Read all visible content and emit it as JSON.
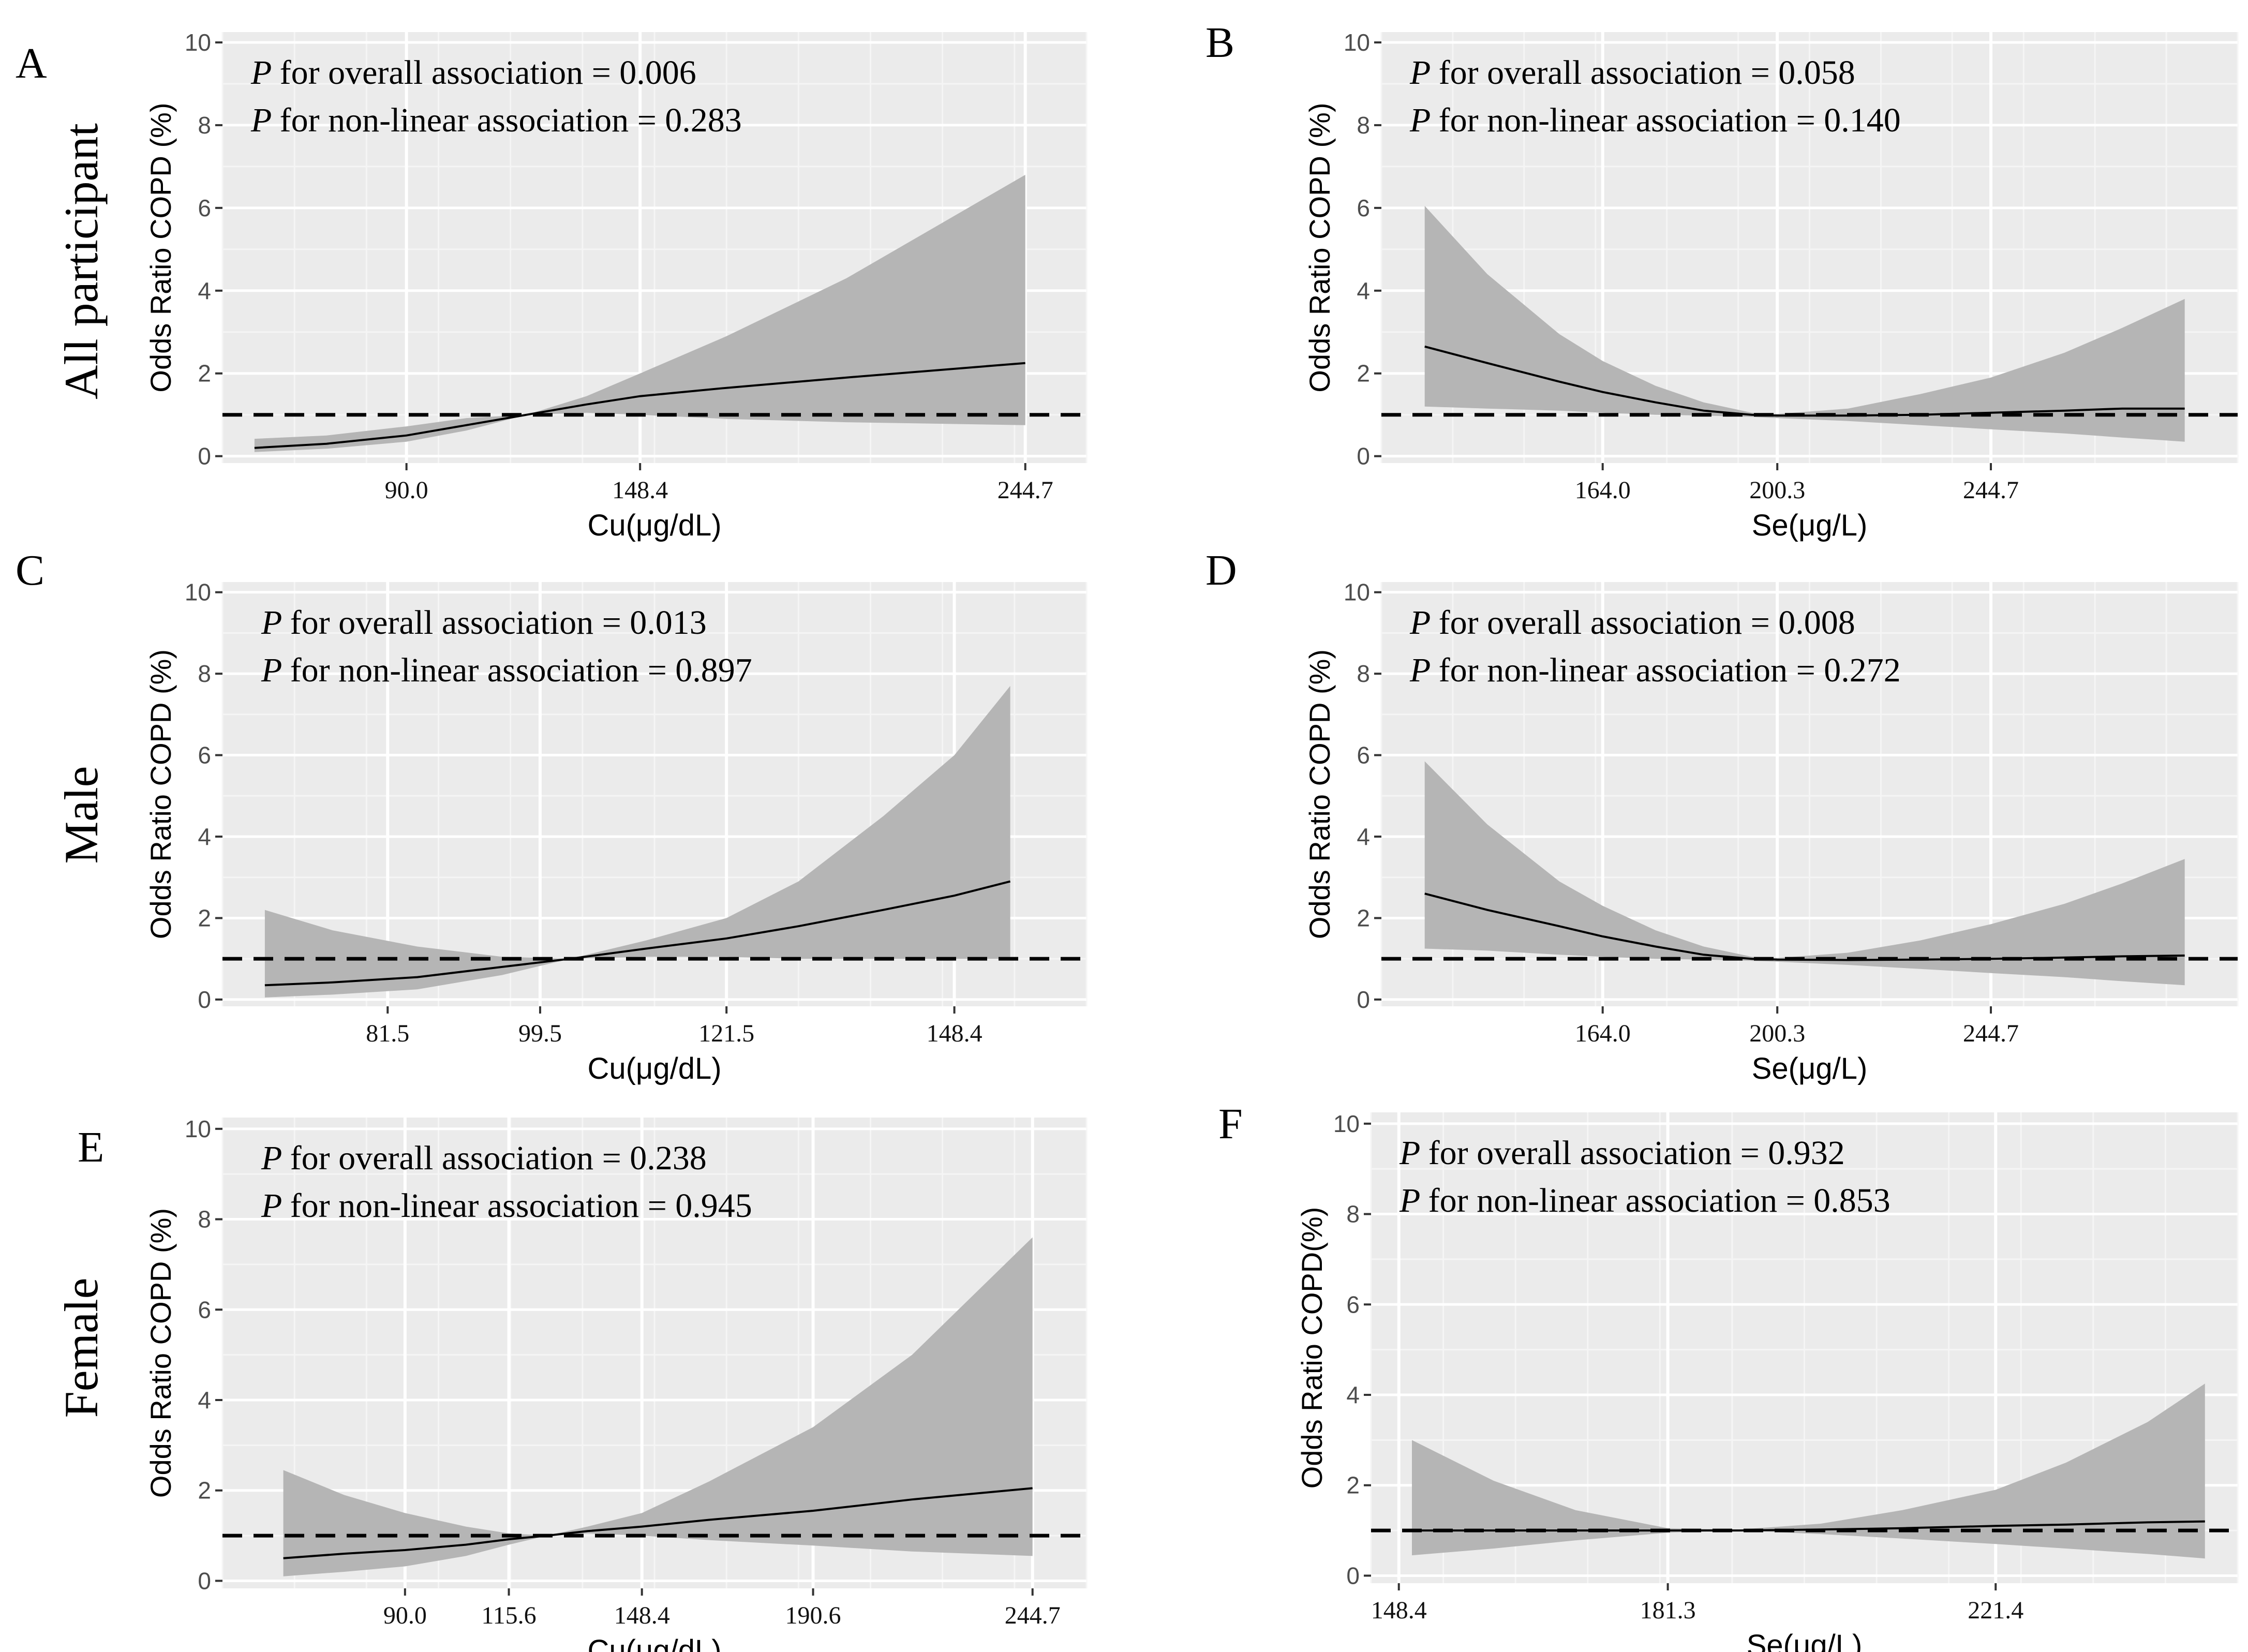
{
  "figure": {
    "row_labels": [
      "All participant",
      "Male",
      "Female"
    ]
  },
  "chart_data": [
    {
      "panel": "A",
      "type": "line",
      "xlabel": "Cu(μg/dL)",
      "ylabel": "Odds Ratio COPD  (%)",
      "ylim": [
        0,
        10
      ],
      "yticks": [
        0,
        2,
        4,
        6,
        8,
        10
      ],
      "xrange": [
        44,
        260
      ],
      "xticks": [
        90.0,
        148.4,
        244.7
      ],
      "xtick_labels": [
        "90.0",
        "148.4",
        "244.7"
      ],
      "grid": true,
      "reference_line": 1,
      "annotations": [
        "for overall association = 0.006",
        "for non-linear association = 0.283"
      ],
      "series": [
        {
          "x": [
            52,
            70,
            90,
            105,
            120,
            135,
            148.4,
            170,
            200,
            244.7
          ],
          "y": [
            0.2,
            0.3,
            0.5,
            0.75,
            1.0,
            1.25,
            1.45,
            1.65,
            1.9,
            2.25
          ],
          "lower": [
            0.1,
            0.18,
            0.35,
            0.62,
            1.0,
            1.05,
            1.0,
            0.9,
            0.82,
            0.75
          ],
          "upper": [
            0.42,
            0.5,
            0.72,
            0.92,
            1.0,
            1.45,
            2.0,
            2.9,
            4.3,
            6.8
          ]
        }
      ]
    },
    {
      "panel": "B",
      "type": "line",
      "xlabel": "Se(μg/L)",
      "ylabel": "Odds Ratio COPD  (%)",
      "ylim": [
        0,
        10
      ],
      "yticks": [
        0,
        2,
        4,
        6,
        8,
        10
      ],
      "xrange": [
        118,
        296
      ],
      "xticks": [
        164.0,
        200.3,
        244.7
      ],
      "xtick_labels": [
        "164.0",
        "200.3",
        "244.7"
      ],
      "grid": true,
      "reference_line": 1,
      "annotations": [
        "for overall association = 0.058",
        "for non-linear association = 0.140"
      ],
      "series": [
        {
          "x": [
            127,
            140,
            155,
            164,
            175,
            185,
            195,
            200.3,
            215,
            230,
            244.7,
            260,
            272,
            285
          ],
          "y": [
            2.65,
            2.25,
            1.8,
            1.55,
            1.3,
            1.1,
            1.0,
            0.98,
            0.98,
            1.0,
            1.05,
            1.1,
            1.15,
            1.15
          ],
          "lower": [
            1.2,
            1.15,
            1.1,
            1.05,
            1.0,
            0.98,
            0.95,
            0.92,
            0.85,
            0.75,
            0.65,
            0.55,
            0.45,
            0.35
          ],
          "upper": [
            6.05,
            4.4,
            2.95,
            2.3,
            1.7,
            1.3,
            1.05,
            1.02,
            1.15,
            1.5,
            1.9,
            2.5,
            3.1,
            3.8
          ]
        }
      ]
    },
    {
      "panel": "C",
      "type": "line",
      "xlabel": "Cu(μg/dL)",
      "ylabel": "Odds Ratio COPD  (%)",
      "ylim": [
        0,
        10
      ],
      "yticks": [
        0,
        2,
        4,
        6,
        8,
        10
      ],
      "xrange": [
        62,
        164
      ],
      "xticks": [
        81.5,
        99.5,
        121.5,
        148.4
      ],
      "xtick_labels": [
        "81.5",
        "99.5",
        "121.5",
        "148.4"
      ],
      "grid": true,
      "reference_line": 1,
      "annotations": [
        "for overall association = 0.013",
        "for non-linear association = 0.897"
      ],
      "series": [
        {
          "x": [
            67,
            75,
            85,
            95,
            103,
            112,
            121.5,
            130,
            140,
            148.4,
            155
          ],
          "y": [
            0.35,
            0.42,
            0.55,
            0.8,
            1.0,
            1.25,
            1.5,
            1.8,
            2.2,
            2.55,
            2.9
          ],
          "lower": [
            0.05,
            0.12,
            0.25,
            0.6,
            1.0,
            1.05,
            1.05,
            1.0,
            1.0,
            1.0,
            1.0
          ],
          "upper": [
            2.2,
            1.7,
            1.3,
            1.05,
            1.0,
            1.45,
            2.0,
            2.9,
            4.5,
            6.0,
            7.7
          ]
        }
      ]
    },
    {
      "panel": "D",
      "type": "line",
      "xlabel": "Se(μg/L)",
      "ylabel": "Odds Ratio COPD  (%)",
      "ylim": [
        0,
        10
      ],
      "yticks": [
        0,
        2,
        4,
        6,
        8,
        10
      ],
      "xrange": [
        118,
        296
      ],
      "xticks": [
        164.0,
        200.3,
        244.7
      ],
      "xtick_labels": [
        "164.0",
        "200.3",
        "244.7"
      ],
      "grid": true,
      "reference_line": 1,
      "annotations": [
        "for overall association = 0.008",
        "for non-linear association = 0.272"
      ],
      "series": [
        {
          "x": [
            127,
            140,
            155,
            164,
            175,
            185,
            195,
            200.3,
            215,
            230,
            244.7,
            260,
            272,
            285
          ],
          "y": [
            2.6,
            2.2,
            1.8,
            1.55,
            1.3,
            1.1,
            1.0,
            0.98,
            0.97,
            0.98,
            1.0,
            1.03,
            1.06,
            1.08
          ],
          "lower": [
            1.25,
            1.2,
            1.1,
            1.05,
            1.0,
            0.98,
            0.95,
            0.93,
            0.85,
            0.75,
            0.65,
            0.55,
            0.45,
            0.35
          ],
          "upper": [
            5.85,
            4.3,
            2.9,
            2.3,
            1.7,
            1.3,
            1.05,
            1.02,
            1.15,
            1.45,
            1.85,
            2.35,
            2.85,
            3.45
          ]
        }
      ]
    },
    {
      "panel": "E",
      "type": "line",
      "xlabel": "Cu(μg/dL)",
      "ylabel": "Odds Ratio COPD  (%)",
      "ylim": [
        0,
        10
      ],
      "yticks": [
        0,
        2,
        4,
        6,
        8,
        10
      ],
      "xrange": [
        45,
        258
      ],
      "xticks": [
        90.0,
        115.6,
        148.4,
        190.6,
        244.7
      ],
      "xtick_labels": [
        "90.0",
        "115.6",
        "148.4",
        "190.6",
        "244.7"
      ],
      "grid": true,
      "reference_line": 1,
      "annotations": [
        "for overall association = 0.238",
        "for non-linear association = 0.945"
      ],
      "series": [
        {
          "x": [
            60,
            75,
            90,
            105,
            115.6,
            125,
            135,
            148.4,
            165,
            190.6,
            215,
            244.7
          ],
          "y": [
            0.5,
            0.6,
            0.68,
            0.8,
            0.92,
            1.0,
            1.1,
            1.2,
            1.35,
            1.55,
            1.8,
            2.05
          ],
          "lower": [
            0.1,
            0.2,
            0.32,
            0.55,
            0.8,
            1.0,
            1.05,
            1.0,
            0.9,
            0.78,
            0.65,
            0.55
          ],
          "upper": [
            2.45,
            1.9,
            1.5,
            1.2,
            1.05,
            1.0,
            1.2,
            1.5,
            2.2,
            3.4,
            5.0,
            7.6
          ]
        }
      ]
    },
    {
      "panel": "F",
      "type": "line",
      "xlabel": "Se(μg/L)",
      "ylabel": "Odds Ratio COPD(%)",
      "ylim": [
        0,
        10
      ],
      "yticks": [
        0,
        2,
        4,
        6,
        8,
        10
      ],
      "xrange": [
        145,
        251
      ],
      "xticks": [
        148.4,
        181.3,
        221.4
      ],
      "xtick_labels": [
        "148.4",
        "181.3",
        "221.4"
      ],
      "grid": true,
      "reference_line": 1,
      "annotations": [
        "for overall association = 0.932",
        "for non-linear association = 0.853"
      ],
      "series": [
        {
          "x": [
            150,
            160,
            170,
            181.3,
            190,
            200,
            210,
            221.4,
            230,
            240,
            247
          ],
          "y": [
            1.0,
            1.0,
            1.0,
            1.0,
            1.0,
            1.02,
            1.05,
            1.1,
            1.13,
            1.18,
            1.2
          ],
          "lower": [
            0.45,
            0.6,
            0.78,
            0.95,
            1.0,
            0.92,
            0.82,
            0.7,
            0.6,
            0.48,
            0.38
          ],
          "upper": [
            3.0,
            2.1,
            1.45,
            1.05,
            1.02,
            1.15,
            1.45,
            1.9,
            2.5,
            3.4,
            4.25
          ]
        }
      ]
    }
  ]
}
